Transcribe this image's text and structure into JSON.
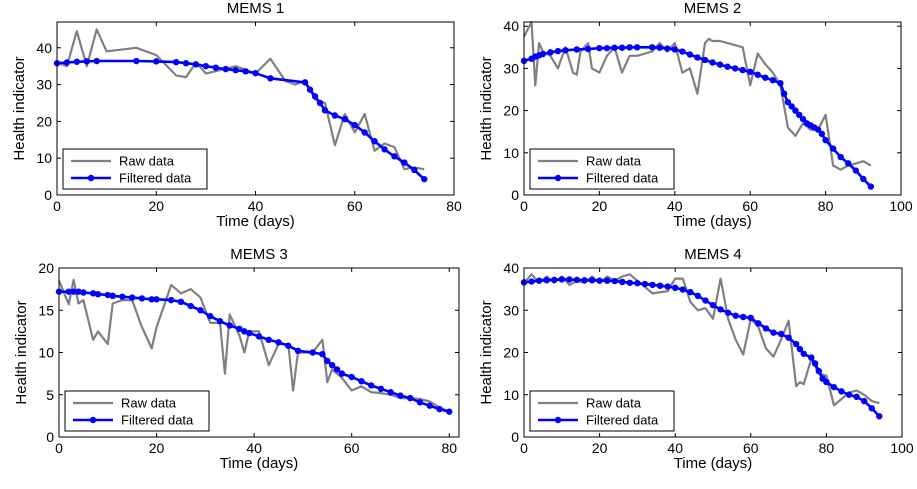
{
  "chart_data": [
    {
      "type": "line",
      "title": "MEMS 1",
      "xlabel": "Time (days)",
      "ylabel": "Health indicator",
      "xlim": [
        0,
        80
      ],
      "ylim": [
        0,
        47
      ],
      "xticks": [
        0,
        20,
        40,
        60,
        80
      ],
      "yticks": [
        0,
        10,
        20,
        30,
        40
      ],
      "legend_position": "lower-left",
      "series": [
        {
          "name": "Raw data",
          "color": "#808080",
          "marker": "none",
          "x": [
            0,
            2,
            4,
            6,
            8,
            10,
            16,
            20,
            24,
            26,
            28,
            30,
            33,
            36,
            40,
            43,
            46,
            48,
            50,
            52,
            54,
            56,
            58,
            60,
            62,
            64,
            66,
            68,
            70,
            72,
            74
          ],
          "y": [
            36,
            35,
            44.5,
            35,
            45,
            39,
            40,
            38,
            32.5,
            32,
            36,
            33,
            34,
            35,
            33,
            37,
            31,
            30,
            31,
            26,
            25,
            13.5,
            22,
            17,
            22,
            12,
            14,
            13,
            7,
            7.5,
            7
          ]
        },
        {
          "name": "Filtered data",
          "color": "#0000ff",
          "marker": "circle",
          "x": [
            0,
            2,
            4,
            6,
            8,
            16,
            20,
            24,
            26,
            28,
            30,
            32,
            34,
            36,
            38,
            40,
            43,
            50,
            51,
            52,
            53,
            54,
            56,
            58,
            60,
            62,
            64,
            66,
            68,
            70,
            72,
            74
          ],
          "y": [
            35.8,
            36,
            36.2,
            36.3,
            36.4,
            36.4,
            36.3,
            36.1,
            35.8,
            35.5,
            35,
            34.6,
            34.2,
            33.9,
            33.6,
            33.1,
            31.7,
            30.6,
            28.6,
            26.8,
            25,
            23,
            21.6,
            20.6,
            19,
            17,
            14.6,
            12.4,
            10.5,
            8.8,
            6.8,
            4.3
          ]
        }
      ]
    },
    {
      "type": "line",
      "title": "MEMS 2",
      "xlabel": "Time (days)",
      "ylabel": "Health indicator",
      "xlim": [
        0,
        100
      ],
      "ylim": [
        0,
        41
      ],
      "xticks": [
        0,
        20,
        40,
        60,
        80,
        100
      ],
      "yticks": [
        0,
        10,
        20,
        30,
        40
      ],
      "legend_position": "lower-left",
      "series": [
        {
          "name": "Raw data",
          "color": "#808080",
          "marker": "none",
          "x": [
            0,
            2,
            3,
            4,
            5,
            7,
            9,
            11,
            13,
            14,
            15,
            17,
            18,
            20,
            22,
            24,
            26,
            28,
            30,
            34,
            36,
            38,
            40,
            42,
            44,
            46,
            48,
            49,
            50,
            52,
            54,
            56,
            58,
            60,
            62,
            64,
            66,
            68,
            70,
            72,
            74,
            76,
            78,
            80,
            82,
            84,
            86,
            88,
            90,
            92
          ],
          "y": [
            37.5,
            41,
            26,
            36,
            34,
            33,
            30,
            35,
            29,
            28.5,
            34,
            36,
            30,
            29,
            33,
            35,
            29,
            33,
            33,
            34,
            36,
            34,
            36,
            29,
            30,
            24,
            36,
            37,
            36.5,
            36.5,
            36,
            35.5,
            35,
            26,
            33.5,
            31,
            29,
            26,
            16,
            14,
            17,
            15.5,
            15.5,
            19,
            7,
            6,
            7,
            7.5,
            8,
            7
          ]
        },
        {
          "name": "Filtered data",
          "color": "#0000ff",
          "marker": "circle",
          "x": [
            0,
            2,
            3,
            4,
            5,
            7,
            9,
            11,
            14,
            17,
            20,
            22,
            24,
            26,
            28,
            30,
            34,
            36,
            38,
            40,
            42,
            44,
            46,
            48,
            50,
            52,
            54,
            56,
            58,
            60,
            62,
            64,
            66,
            68,
            69,
            70,
            71,
            72,
            73,
            74,
            75,
            76,
            77,
            78,
            79,
            80,
            82,
            84,
            86,
            88,
            90,
            92
          ],
          "y": [
            31.8,
            32.3,
            32.8,
            33.1,
            33.4,
            33.8,
            34.1,
            34.3,
            34.5,
            34.6,
            34.8,
            34.8,
            34.9,
            34.9,
            35,
            35,
            35,
            34.9,
            34.7,
            34.5,
            34,
            33.3,
            32.6,
            32,
            31.4,
            30.9,
            30.4,
            30,
            29.6,
            29.2,
            28.5,
            27.8,
            27.2,
            26.5,
            24,
            22,
            21,
            20,
            19,
            18,
            17,
            16.5,
            16,
            15.5,
            14.5,
            13,
            11,
            9,
            7.5,
            5.8,
            3.8,
            2
          ]
        }
      ]
    },
    {
      "type": "line",
      "title": "MEMS 3",
      "xlabel": "Time (days)",
      "ylabel": "Health indicator",
      "xlim": [
        0,
        82
      ],
      "ylim": [
        0,
        20
      ],
      "xticks": [
        0,
        20,
        40,
        60,
        80
      ],
      "yticks": [
        0,
        5,
        10,
        15,
        20
      ],
      "legend_position": "lower-left",
      "series": [
        {
          "name": "Raw data",
          "color": "#808080",
          "marker": "none",
          "x": [
            0,
            2,
            3,
            4,
            5,
            7,
            8,
            10,
            11,
            13,
            15,
            17,
            19,
            20,
            23,
            25,
            27,
            29,
            31,
            33,
            34,
            35,
            37,
            38,
            39,
            41,
            43,
            45,
            47,
            48,
            49,
            52,
            54,
            55,
            56,
            58,
            60,
            62,
            64,
            66,
            68,
            70,
            72,
            74,
            76,
            78,
            80
          ],
          "y": [
            18.5,
            15.7,
            18.6,
            15.8,
            16.2,
            11.5,
            12.5,
            11,
            15.8,
            16.2,
            16.2,
            13,
            10.5,
            13,
            18,
            17,
            17.5,
            16.5,
            13.5,
            13.5,
            7.5,
            14.5,
            12,
            10,
            12.5,
            12.5,
            8.5,
            11,
            11,
            5.5,
            10,
            10,
            11.5,
            6.5,
            8,
            7,
            5.5,
            6,
            5.3,
            5.2,
            5,
            4.6,
            4.6,
            4.5,
            4.2,
            3.5,
            3
          ]
        },
        {
          "name": "Filtered data",
          "color": "#0000ff",
          "marker": "circle",
          "x": [
            0,
            2,
            3,
            4,
            5,
            7,
            8,
            10,
            11,
            13,
            15,
            17,
            19,
            20,
            23,
            25,
            27,
            29,
            31,
            33,
            35,
            37,
            38,
            39,
            41,
            43,
            45,
            47,
            49,
            52,
            54,
            55,
            56,
            57,
            58,
            60,
            62,
            64,
            66,
            68,
            70,
            72,
            74,
            76,
            78,
            80
          ],
          "y": [
            17.2,
            17.2,
            17.2,
            17.2,
            17.1,
            17,
            16.9,
            16.8,
            16.7,
            16.6,
            16.5,
            16.4,
            16.3,
            16.3,
            16.2,
            16,
            15.5,
            15,
            14.3,
            13.7,
            13.2,
            12.8,
            12.5,
            12.3,
            11.9,
            11.5,
            11.2,
            10.8,
            10.2,
            10,
            9.8,
            9,
            8.5,
            8,
            7.5,
            7.1,
            6.6,
            6.1,
            5.7,
            5.3,
            4.9,
            4.6,
            4.1,
            3.7,
            3.3,
            3
          ]
        }
      ]
    },
    {
      "type": "line",
      "title": "MEMS 4",
      "xlabel": "Time (days)",
      "ylabel": "Health indicator",
      "xlim": [
        0,
        100
      ],
      "ylim": [
        0,
        40
      ],
      "xticks": [
        0,
        20,
        40,
        60,
        80,
        100
      ],
      "yticks": [
        0,
        10,
        20,
        30,
        40
      ],
      "legend_position": "lower-left",
      "series": [
        {
          "name": "Raw data",
          "color": "#808080",
          "marker": "none",
          "x": [
            0,
            2,
            4,
            6,
            8,
            10,
            12,
            14,
            16,
            18,
            20,
            22,
            24,
            26,
            28,
            30,
            34,
            38,
            40,
            42,
            44,
            46,
            48,
            50,
            52,
            54,
            56,
            58,
            60,
            62,
            64,
            66,
            68,
            70,
            72,
            73,
            74,
            76,
            78,
            80,
            82,
            84,
            86,
            88,
            90,
            92,
            94
          ],
          "y": [
            36.5,
            38.5,
            36.5,
            38,
            36.5,
            38,
            36,
            37,
            36.5,
            38,
            36.5,
            38,
            37,
            38,
            38.5,
            37,
            34,
            34.5,
            37.5,
            37.5,
            32,
            30,
            30.5,
            28,
            37.5,
            28,
            23,
            19.5,
            28,
            26,
            21,
            19,
            23,
            27.5,
            12,
            13,
            12.5,
            18.5,
            15,
            14.5,
            7.5,
            9,
            10.5,
            11,
            10,
            8.5,
            8
          ]
        },
        {
          "name": "Filtered data",
          "color": "#0000ff",
          "marker": "circle",
          "x": [
            0,
            2,
            4,
            6,
            8,
            10,
            12,
            14,
            16,
            18,
            20,
            22,
            24,
            26,
            28,
            30,
            32,
            34,
            36,
            38,
            40,
            42,
            44,
            46,
            48,
            50,
            52,
            54,
            56,
            58,
            60,
            62,
            64,
            66,
            68,
            70,
            72,
            73,
            74,
            76,
            77,
            78,
            79,
            80,
            82,
            84,
            86,
            88,
            90,
            92,
            94
          ],
          "y": [
            36.6,
            36.8,
            37,
            37.1,
            37.2,
            37.3,
            37.3,
            37.2,
            37.1,
            37.1,
            37,
            37,
            36.9,
            36.7,
            36.5,
            36.4,
            36.2,
            36,
            35.8,
            35.6,
            35.3,
            34.9,
            34.3,
            33.4,
            32.3,
            31.2,
            30.2,
            29.4,
            28.7,
            28.4,
            28.2,
            26.9,
            25.7,
            24.7,
            24.4,
            23.5,
            22,
            20.8,
            19.7,
            18.8,
            17.4,
            15.6,
            13.8,
            13,
            11.8,
            10.8,
            10,
            9.5,
            8.5,
            6.8,
            4.9
          ]
        }
      ]
    }
  ]
}
